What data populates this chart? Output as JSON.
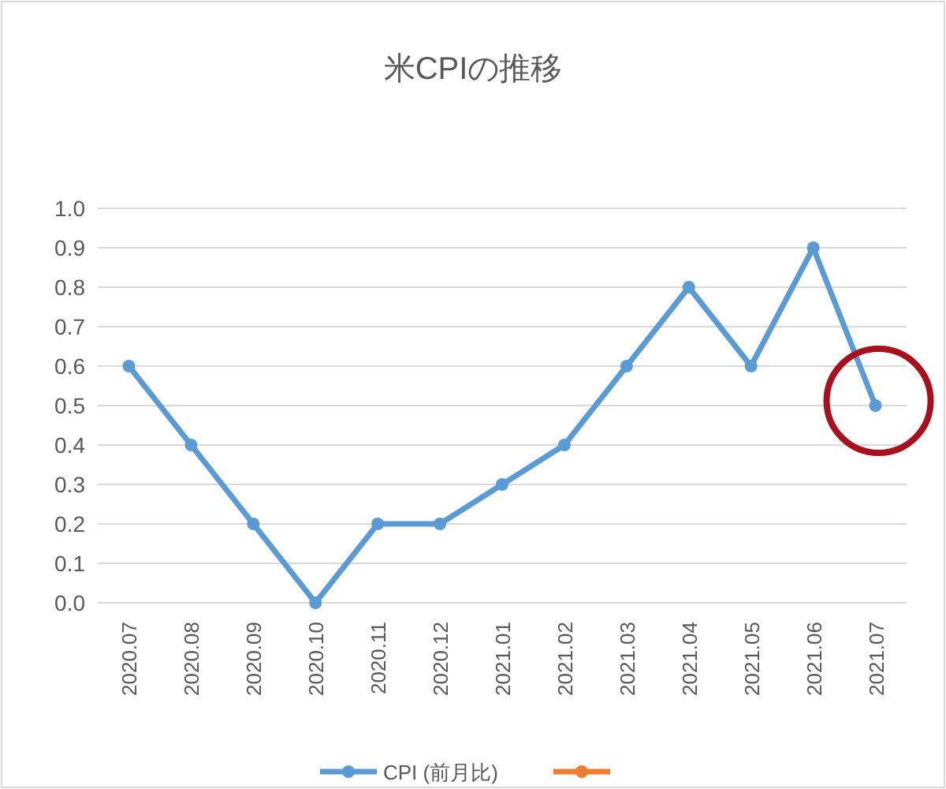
{
  "chart_data": {
    "type": "line",
    "title": "米CPIの推移",
    "categories": [
      "2020.07",
      "2020.08",
      "2020.09",
      "2020.10",
      "2020.11",
      "2020.12",
      "2021.01",
      "2021.02",
      "2021.03",
      "2021.04",
      "2021.05",
      "2021.06",
      "2021.07"
    ],
    "series": [
      {
        "name": "CPI (前月比)",
        "color": "#5b9bd5",
        "values": [
          0.6,
          0.4,
          0.2,
          0.0,
          0.2,
          0.2,
          0.3,
          0.4,
          0.6,
          0.8,
          0.6,
          0.9,
          0.5
        ]
      },
      {
        "color": "#ed7d31",
        "values": [
          null,
          null,
          null,
          null,
          null,
          null,
          null,
          null,
          null,
          null,
          null,
          null,
          null
        ]
      }
    ],
    "ylim": [
      0,
      1
    ],
    "yticks": [
      {
        "value": 0,
        "label": "0.0"
      },
      {
        "value": 0.1,
        "label": "0.1"
      },
      {
        "value": 0.2,
        "label": "0.2"
      },
      {
        "value": 0.3,
        "label": "0.3"
      },
      {
        "value": 0.4,
        "label": "0.4"
      },
      {
        "value": 0.5,
        "label": "0.5"
      },
      {
        "value": 0.6,
        "label": "0.6"
      },
      {
        "value": 0.7,
        "label": "0.7"
      },
      {
        "value": 0.8,
        "label": "0.8"
      },
      {
        "value": 0.9,
        "label": "0.9"
      },
      {
        "value": 1,
        "label": "1.0"
      }
    ],
    "grid": "y",
    "legend": "bottom",
    "marker": "circle",
    "line_style": "solid"
  }
}
